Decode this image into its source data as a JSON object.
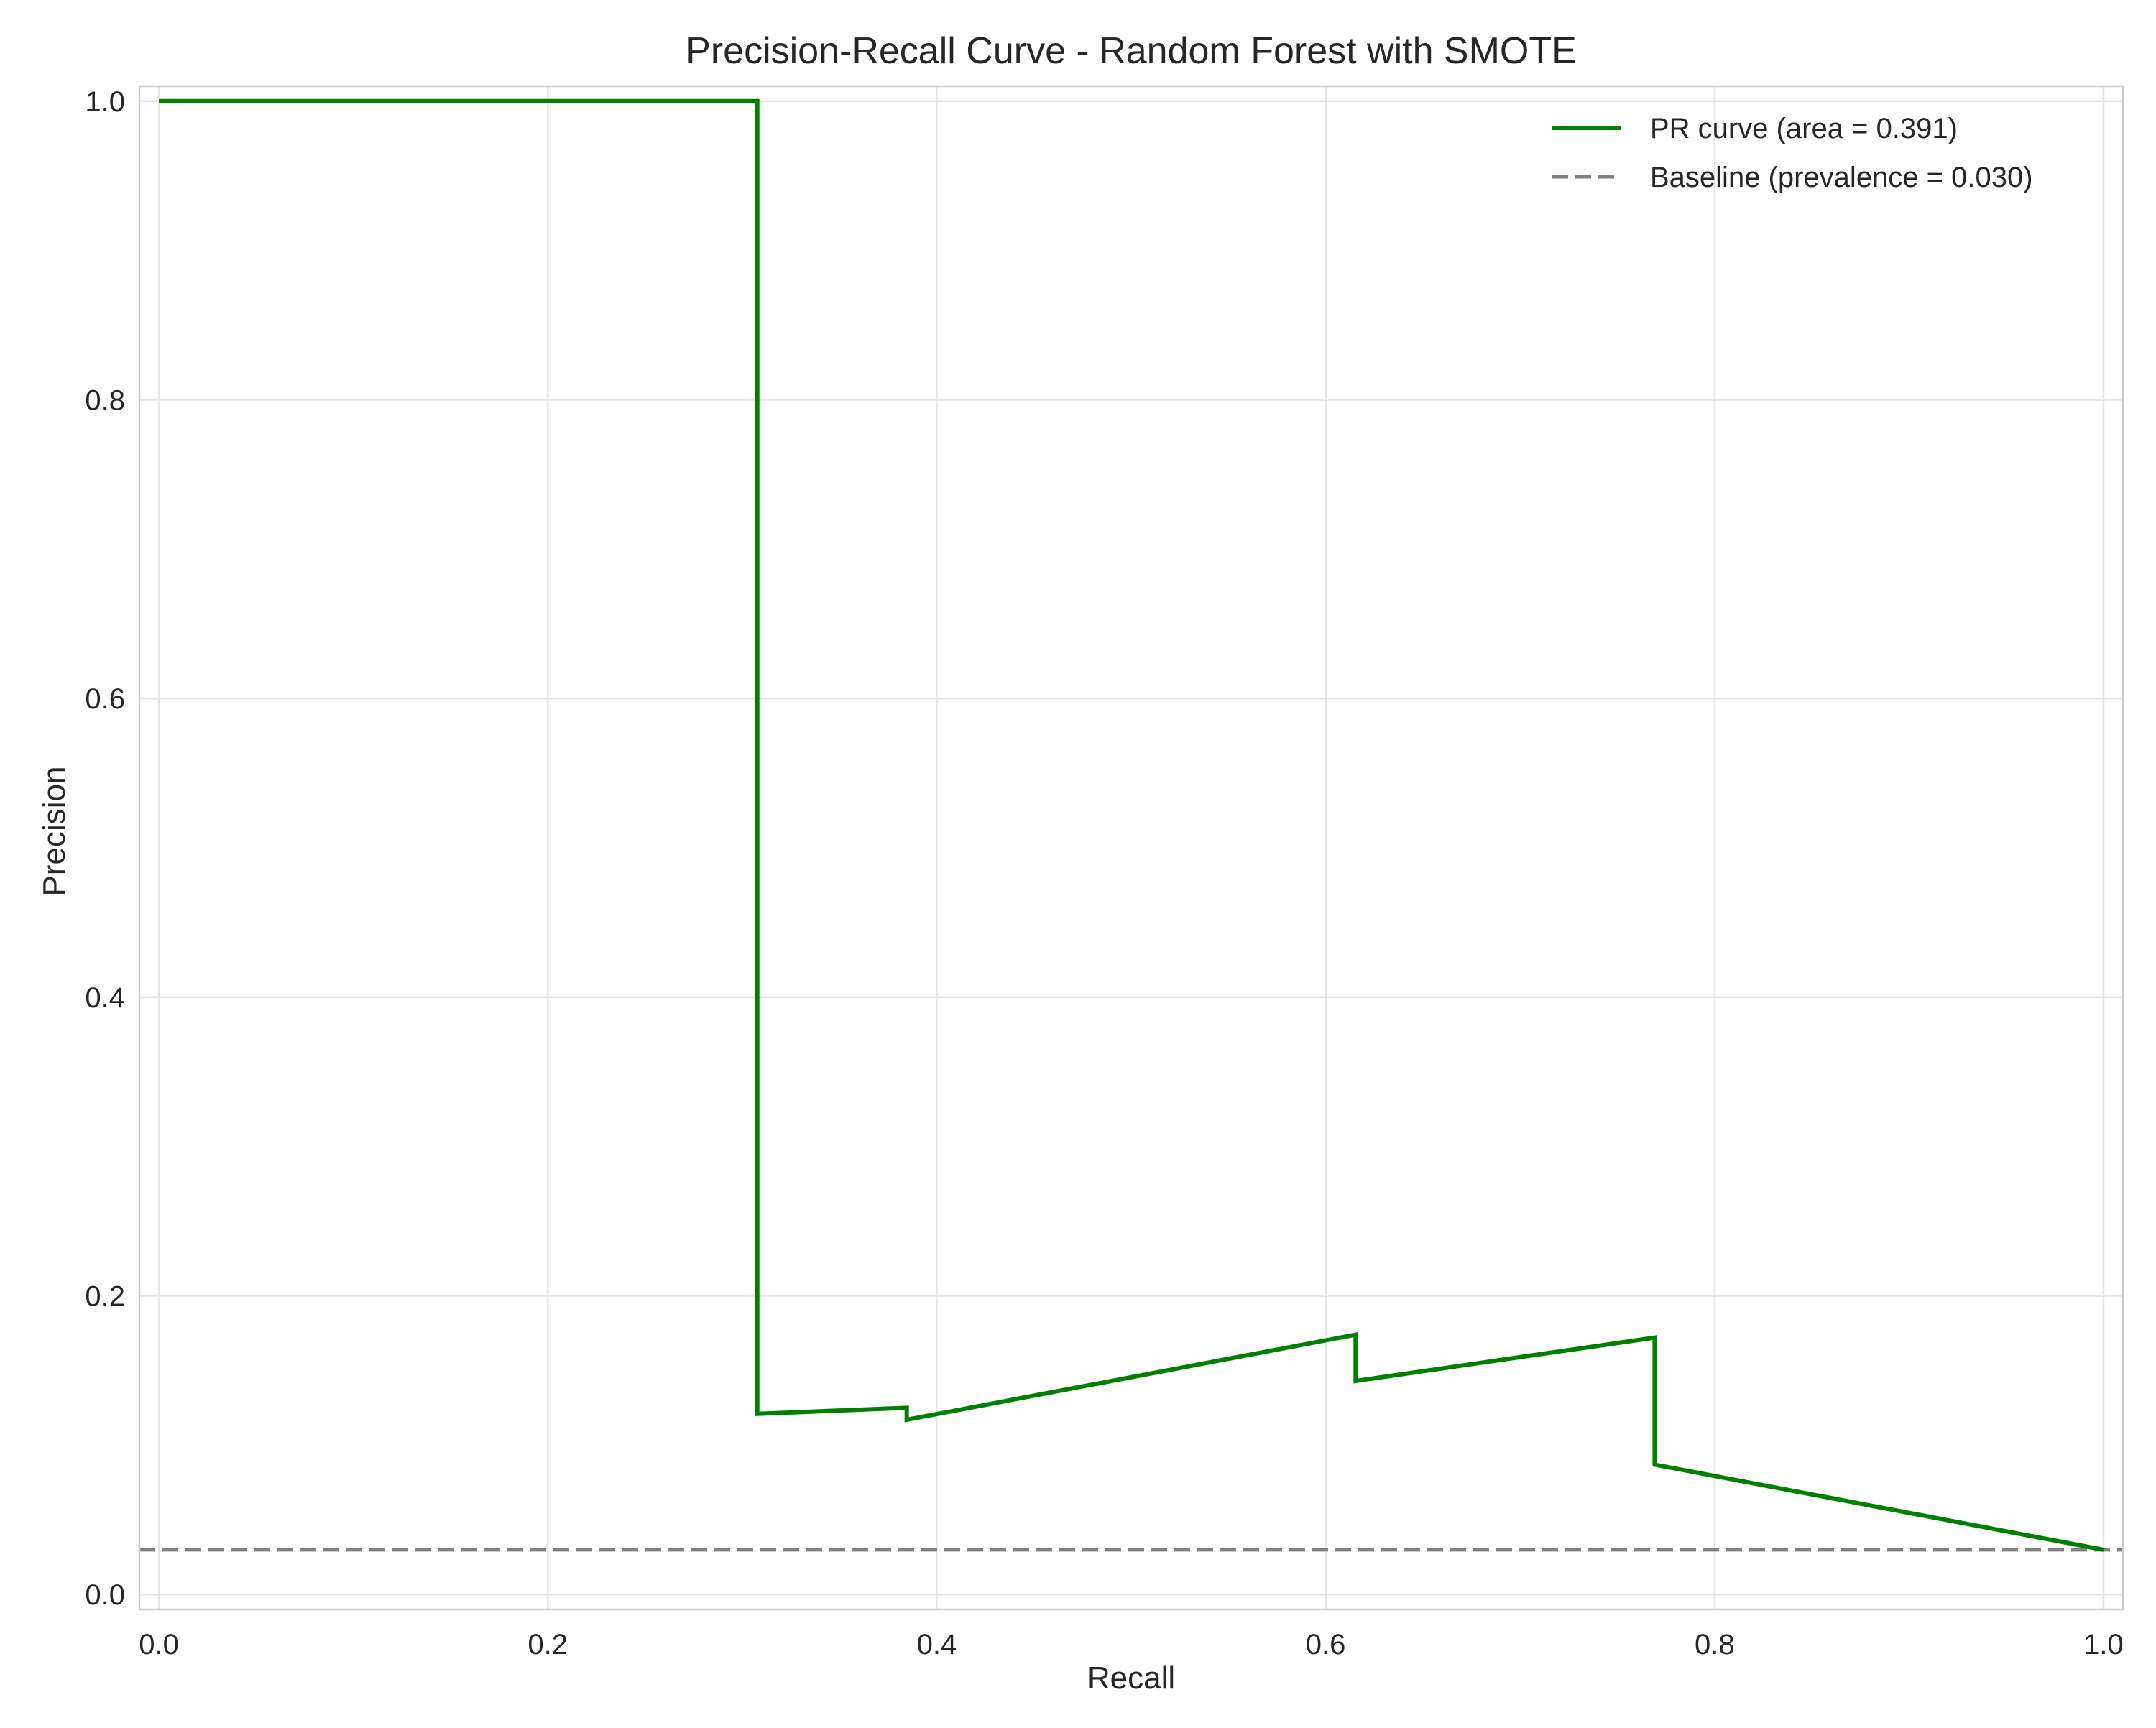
{
  "chart_data": {
    "type": "line",
    "title": "Precision-Recall Curve - Random Forest with SMOTE",
    "xlabel": "Recall",
    "ylabel": "Precision",
    "xlim": [
      -0.01,
      1.01
    ],
    "ylim": [
      -0.01,
      1.01
    ],
    "xticks": [
      0.0,
      0.2,
      0.4,
      0.6,
      0.8,
      1.0
    ],
    "xtick_labels": [
      "0.0",
      "0.2",
      "0.4",
      "0.6",
      "0.8",
      "1.0"
    ],
    "yticks": [
      0.0,
      0.2,
      0.4,
      0.6,
      0.8,
      1.0
    ],
    "ytick_labels": [
      "0.0",
      "0.2",
      "0.4",
      "0.6",
      "0.8",
      "1.0"
    ],
    "grid": true,
    "legend_position": "top-right",
    "series": [
      {
        "name": "PR curve (area = 0.391)",
        "color": "#008000",
        "line_style": "solid",
        "x": [
          0.0,
          0.3077,
          0.3077,
          0.3846,
          0.3846,
          0.6154,
          0.6154,
          0.7692,
          0.7692,
          1.0
        ],
        "y": [
          1.0,
          1.0,
          0.121,
          0.125,
          0.117,
          0.174,
          0.143,
          0.172,
          0.087,
          0.03
        ]
      },
      {
        "name": "Baseline (prevalence = 0.030)",
        "color": "#808080",
        "line_style": "dashed",
        "x": [
          -0.01,
          1.01
        ],
        "y": [
          0.03,
          0.03
        ]
      }
    ]
  }
}
